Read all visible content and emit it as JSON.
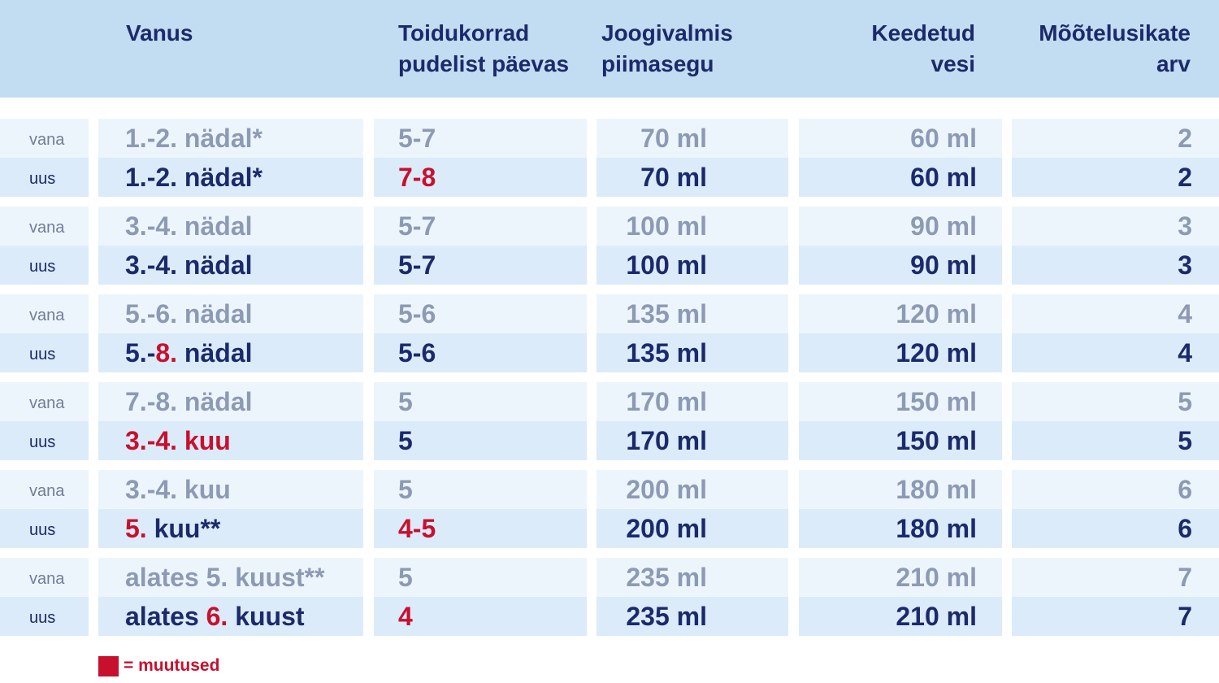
{
  "colors": {
    "header_bg": "#c2dcf1",
    "old_row_bg": "#edf5fc",
    "new_row_bg": "#dcebf9",
    "text_dark": "#1b2a6b",
    "text_muted": "#8c9ab4",
    "change_red": "#c8102e"
  },
  "header": {
    "age": [
      "Vanus"
    ],
    "meals": [
      "Toidukorrad",
      "pudelist päevas"
    ],
    "formula": [
      "Joogivalmis",
      "piimasegu"
    ],
    "water": [
      "Keedetud",
      "vesi"
    ],
    "spoons": [
      "Mõõtelusikate",
      "arv"
    ]
  },
  "row_labels": {
    "old": "vana",
    "new": "uus"
  },
  "groups": [
    {
      "old": {
        "age": [
          {
            "t": "1.-2. nädal*"
          }
        ],
        "meals": [
          {
            "t": "5-7"
          }
        ],
        "formula": "70 ml",
        "water": "60 ml",
        "spoons": "2"
      },
      "new": {
        "age": [
          {
            "t": "1.-2. nädal*"
          }
        ],
        "meals": [
          {
            "t": "7-8",
            "changed": true
          }
        ],
        "formula": "70 ml",
        "water": "60 ml",
        "spoons": "2"
      }
    },
    {
      "old": {
        "age": [
          {
            "t": "3.-4. nädal"
          }
        ],
        "meals": [
          {
            "t": "5-7"
          }
        ],
        "formula": "100 ml",
        "water": "90 ml",
        "spoons": "3"
      },
      "new": {
        "age": [
          {
            "t": "3.-4. nädal"
          }
        ],
        "meals": [
          {
            "t": "5-7"
          }
        ],
        "formula": "100 ml",
        "water": "90 ml",
        "spoons": "3"
      }
    },
    {
      "old": {
        "age": [
          {
            "t": "5.-6. nädal"
          }
        ],
        "meals": [
          {
            "t": "5-6"
          }
        ],
        "formula": "135 ml",
        "water": "120 ml",
        "spoons": "4"
      },
      "new": {
        "age": [
          {
            "t": "5.-"
          },
          {
            "t": "8.",
            "changed": true
          },
          {
            "t": " nädal"
          }
        ],
        "meals": [
          {
            "t": "5-6"
          }
        ],
        "formula": "135 ml",
        "water": "120 ml",
        "spoons": "4"
      }
    },
    {
      "old": {
        "age": [
          {
            "t": "7.-8. nädal"
          }
        ],
        "meals": [
          {
            "t": "5"
          }
        ],
        "formula": "170 ml",
        "water": "150 ml",
        "spoons": "5"
      },
      "new": {
        "age": [
          {
            "t": "3.-4. kuu",
            "changed": true
          }
        ],
        "meals": [
          {
            "t": "5"
          }
        ],
        "formula": "170 ml",
        "water": "150 ml",
        "spoons": "5"
      }
    },
    {
      "old": {
        "age": [
          {
            "t": "3.-4. kuu"
          }
        ],
        "meals": [
          {
            "t": "5"
          }
        ],
        "formula": "200 ml",
        "water": "180 ml",
        "spoons": "6"
      },
      "new": {
        "age": [
          {
            "t": "5.",
            "changed": true
          },
          {
            "t": " kuu**"
          }
        ],
        "meals": [
          {
            "t": "4-5",
            "changed": true
          }
        ],
        "formula": "200 ml",
        "water": "180 ml",
        "spoons": "6"
      }
    },
    {
      "old": {
        "age": [
          {
            "t": "alates 5. kuust**"
          }
        ],
        "meals": [
          {
            "t": "5"
          }
        ],
        "formula": "235 ml",
        "water": "210 ml",
        "spoons": "7"
      },
      "new": {
        "age": [
          {
            "t": "alates "
          },
          {
            "t": "6.",
            "changed": true
          },
          {
            "t": " kuust"
          }
        ],
        "meals": [
          {
            "t": "4",
            "changed": true
          }
        ],
        "formula": "235 ml",
        "water": "210 ml",
        "spoons": "7"
      }
    }
  ],
  "legend": {
    "text": "= muutused"
  }
}
